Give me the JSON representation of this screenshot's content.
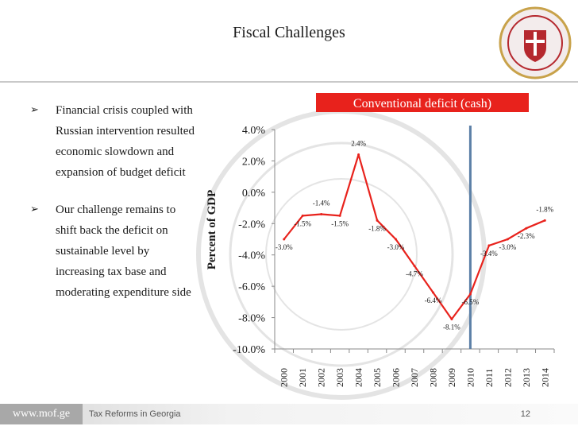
{
  "slide": {
    "title": "Fiscal Challenges",
    "footer_brand": "www.mof.ge",
    "footer_text": "Tax Reforms in Georgia",
    "page_number": "12"
  },
  "bullets": [
    {
      "text": "Financial crisis coupled with Russian intervention resulted economic slowdown and expansion of budget deficit"
    },
    {
      "text": "Our challenge remains to shift back the deficit on sustainable level by increasing tax base and moderating expenditure side"
    }
  ],
  "colors": {
    "line": "#e8221c",
    "marker_line": "#5b7fa6",
    "title_box": "#e8221c",
    "emblem_red": "#b5282e",
    "emblem_gold": "#c8a24a"
  },
  "chart_data": {
    "type": "line",
    "title": "Conventional deficit (cash)",
    "ylabel": "Percent of GDP",
    "xlabel": "",
    "x": [
      "2000",
      "2001",
      "2002",
      "2003",
      "2004",
      "2005",
      "2006",
      "2007",
      "2008",
      "2009",
      "2010",
      "2011",
      "2012",
      "2013",
      "2014"
    ],
    "series": [
      {
        "values": [
          -3.0,
          -1.5,
          -1.4,
          -1.5,
          2.4,
          -1.8,
          -3.0,
          -4.7,
          -6.4,
          -8.1,
          -6.5,
          -3.4,
          -3.0,
          -2.3,
          -1.8
        ]
      }
    ],
    "data_labels": [
      "-3.0%",
      "-1.5%",
      "-1.4%",
      "-1.5%",
      "2.4%",
      "-1.8%",
      "-3.0%",
      "-4.7%",
      "-6.4%",
      "-8.1%",
      "-6.5%",
      "-3.4%",
      "-3.0%",
      "-2.3%",
      "-1.8%"
    ],
    "ylim": [
      -10,
      4
    ],
    "yticks": [
      4,
      2,
      0,
      -2,
      -4,
      -6,
      -8,
      -10
    ],
    "ytick_labels": [
      "4.0%",
      "2.0%",
      "0.0%",
      "-2.0%",
      "-4.0%",
      "-6.0%",
      "-8.0%",
      "-10.0%"
    ],
    "vertical_marker_x": "2010",
    "grid": false,
    "legend": "none"
  }
}
